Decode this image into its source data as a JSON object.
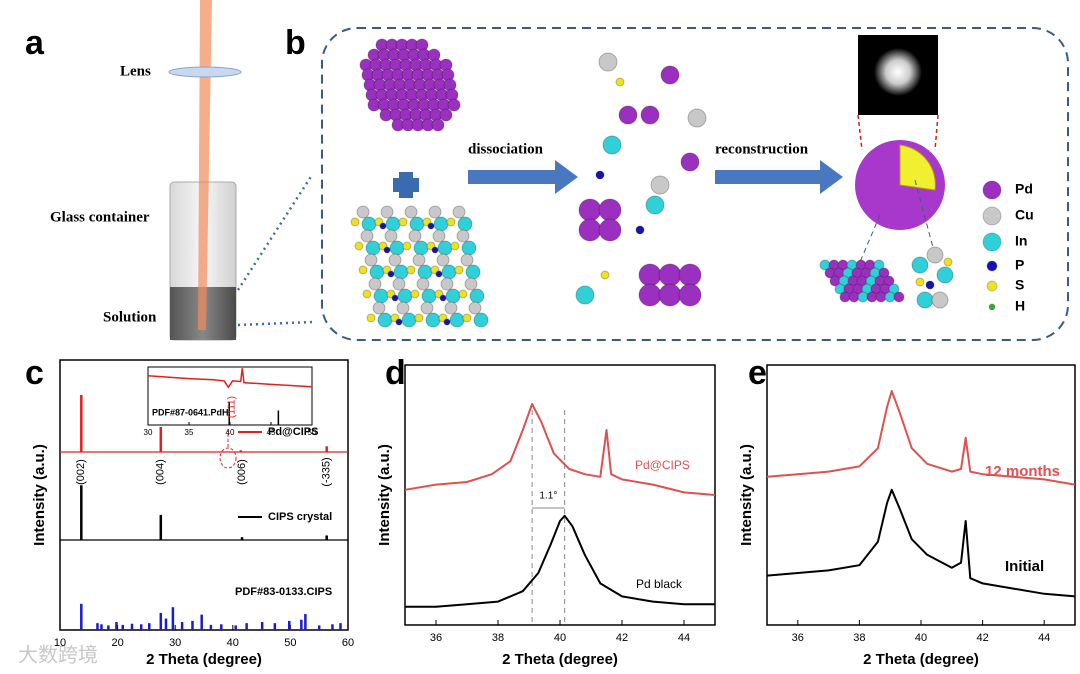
{
  "watermark": "大数跨境",
  "panel_a": {
    "label": "a",
    "lens": "Lens",
    "container": "Glass container",
    "solution": "Solution"
  },
  "panel_b": {
    "label": "b",
    "arrows": [
      "dissociation",
      "reconstruction"
    ],
    "legend": [
      {
        "name": "Pd",
        "color": "#9b30c0"
      },
      {
        "name": "Cu",
        "color": "#c8c8c8"
      },
      {
        "name": "In",
        "color": "#30d0d8"
      },
      {
        "name": "P",
        "color": "#1414b4"
      },
      {
        "name": "S",
        "color": "#f0e020"
      },
      {
        "name": "H",
        "color": "#30b030"
      }
    ]
  },
  "panel_c": {
    "label": "c",
    "xlabel": "2 Theta (degree)",
    "ylabel": "Intensity (a.u.)",
    "xlim": [
      10,
      60
    ],
    "xticks": [
      10,
      20,
      30,
      40,
      50,
      60
    ],
    "series": [
      {
        "name": "Pd@CIPS",
        "color": "#e02020",
        "x": [
          13.7,
          27.5,
          41.4,
          56.3
        ],
        "values": [
          100,
          44,
          3,
          10
        ]
      },
      {
        "name": "CIPS crystal",
        "color": "#000000",
        "x": [
          13.7,
          27.5,
          41.6,
          56.3
        ],
        "values": [
          96,
          44,
          5,
          8
        ]
      },
      {
        "name": "PDF#83-0133.CIPS",
        "color": "#1a1ad0",
        "x": [
          13.7,
          16.5,
          17.2,
          18.4,
          19.8,
          20.9,
          22.5,
          24.1,
          25.5,
          27.5,
          28.4,
          29.6,
          31.2,
          33.0,
          34.6,
          36.2,
          38.0,
          40.5,
          42.4,
          45.1,
          47.3,
          49.8,
          51.9,
          52.6,
          55.0,
          57.3,
          58.7
        ],
        "values": [
          46,
          12,
          10,
          8,
          14,
          9,
          11,
          10,
          12,
          30,
          20,
          40,
          14,
          16,
          27,
          9,
          10,
          8,
          12,
          14,
          12,
          16,
          18,
          28,
          8,
          10,
          12
        ]
      }
    ],
    "peak_labels": [
      {
        "x": 13.7,
        "label": "(002)"
      },
      {
        "x": 27.5,
        "label": "(004)"
      },
      {
        "x": 41.6,
        "label": "(006)"
      },
      {
        "x": 56.3,
        "label": "(-335)"
      }
    ],
    "inset": {
      "xlim": [
        30,
        50
      ],
      "xticks": [
        30,
        35,
        40,
        45,
        50
      ],
      "ylim": [
        0,
        100
      ],
      "reference": "PDF#87-0641.PdH",
      "peak_label": "(111)",
      "x": [
        30,
        35,
        38,
        39.3,
        39.8,
        40.3,
        41.3,
        41.5,
        41.7,
        45,
        50
      ],
      "values": [
        85,
        80,
        78,
        76,
        65,
        76,
        75,
        98,
        73,
        70,
        66
      ],
      "sticks_x": [
        39.9,
        45.9
      ],
      "sticks_values": [
        40,
        25
      ]
    }
  },
  "panel_d": {
    "label": "d",
    "xlabel": "2 Theta (degree)",
    "ylabel": "Intensity (a.u.)",
    "xlim": [
      35,
      45
    ],
    "xticks": [
      36,
      38,
      40,
      42,
      44
    ],
    "ylim": [
      0,
      100
    ],
    "series": [
      {
        "name": "Pd@CIPS",
        "color": "#e05050",
        "x": [
          35,
          36,
          37,
          37.8,
          38.4,
          38.8,
          39.1,
          39.4,
          39.8,
          40.3,
          40.8,
          41.3,
          41.5,
          41.65,
          42,
          43,
          44,
          45
        ],
        "values": [
          52,
          54,
          55,
          58,
          63,
          75,
          85,
          78,
          66,
          60,
          58,
          57,
          75,
          58,
          56,
          54,
          51,
          50
        ]
      },
      {
        "name": "Pd black",
        "color": "#000000",
        "x": [
          35,
          36,
          37,
          38,
          38.8,
          39.3,
          39.7,
          40.0,
          40.15,
          40.4,
          40.8,
          41.3,
          42,
          43,
          44,
          45
        ],
        "values": [
          7,
          7,
          8,
          9,
          13,
          20,
          31,
          40,
          42,
          38,
          27,
          16,
          11,
          9,
          8,
          8
        ]
      }
    ],
    "reference_lines": [
      39.1,
      40.15
    ],
    "shift_label": "1.1°"
  },
  "panel_e": {
    "label": "e",
    "xlabel": "2 Theta (degree)",
    "ylabel": "Intensity (a.u.)",
    "xlim": [
      35,
      45
    ],
    "xticks": [
      36,
      38,
      40,
      42,
      44
    ],
    "ylim": [
      0,
      100
    ],
    "series": [
      {
        "name": "12 months",
        "color": "#e05050",
        "x": [
          35,
          36,
          37,
          38,
          38.6,
          38.9,
          39.05,
          39.3,
          39.7,
          40.2,
          41.0,
          41.3,
          41.45,
          41.6,
          42,
          43,
          44,
          45
        ],
        "values": [
          57,
          58,
          59,
          61,
          68,
          84,
          90,
          82,
          68,
          62,
          59,
          60,
          72,
          59,
          58,
          57,
          56,
          54
        ]
      },
      {
        "name": "Initial",
        "color": "#000000",
        "x": [
          35,
          36,
          37,
          38,
          38.6,
          38.9,
          39.05,
          39.3,
          39.7,
          40.2,
          41.0,
          41.3,
          41.45,
          41.6,
          42,
          43,
          44,
          45
        ],
        "values": [
          19,
          20,
          21,
          23,
          32,
          47,
          52,
          45,
          33,
          27,
          22,
          24,
          40,
          18,
          16,
          14,
          12,
          11
        ]
      }
    ]
  }
}
